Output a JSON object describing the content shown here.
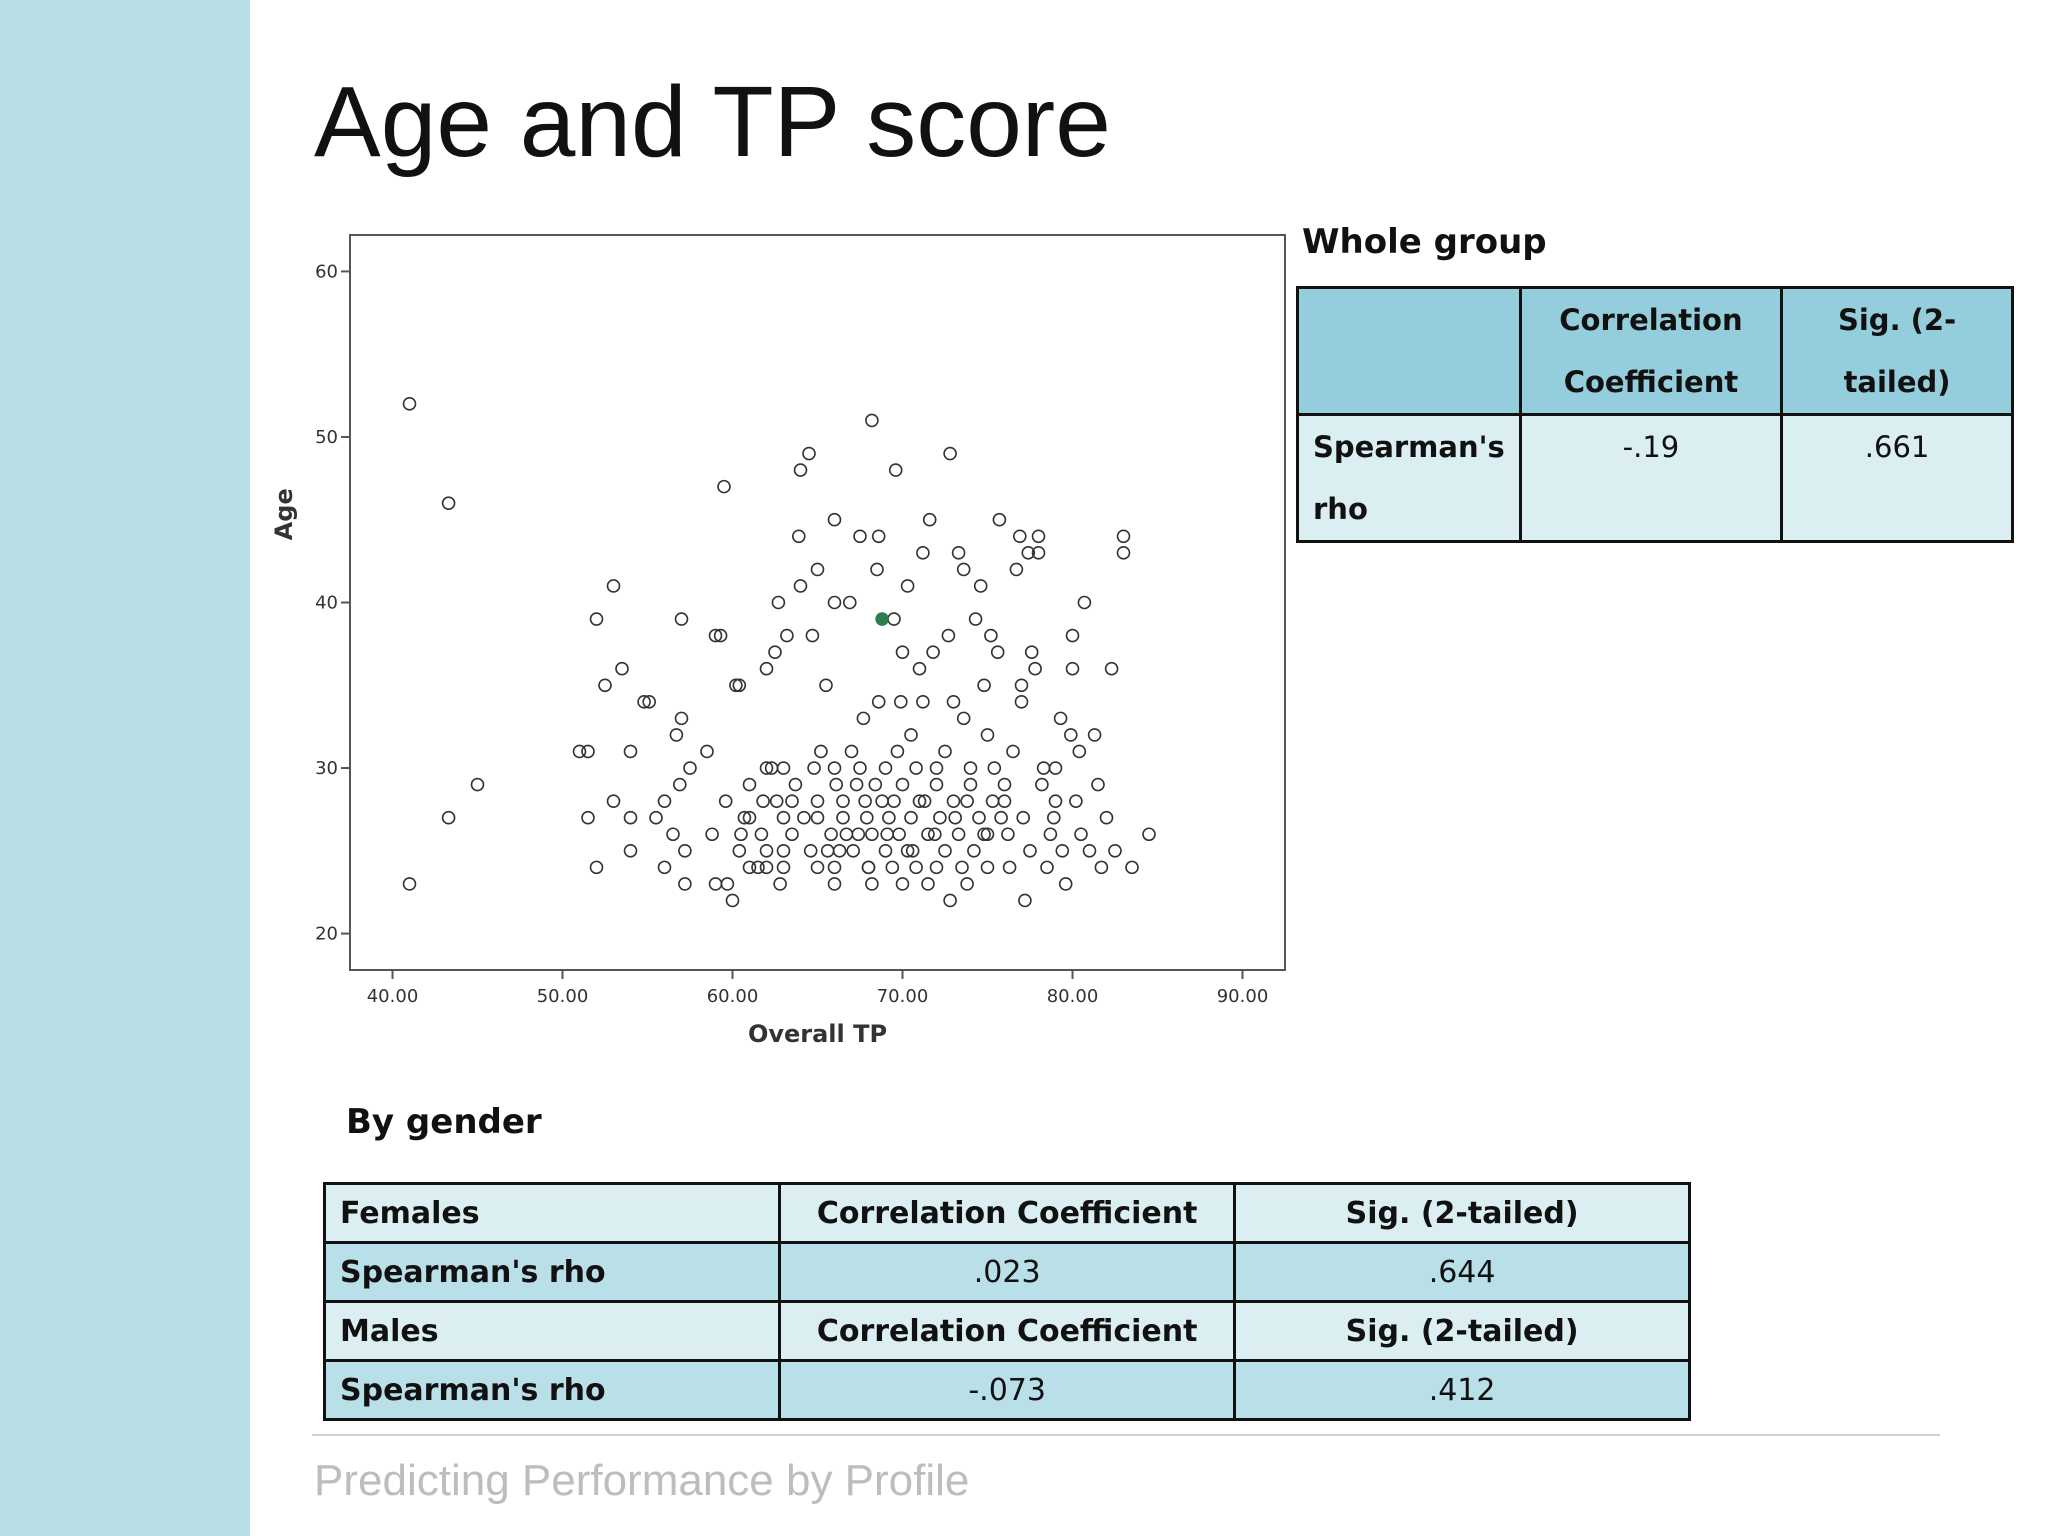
{
  "slide": {
    "title": "Age and TP score",
    "footer": "Predicting Performance by Profile",
    "sidebar_color": "#b7dee6"
  },
  "whole_group": {
    "label": "Whole group",
    "headers": [
      "",
      "Correlation Coefficient",
      "Sig. (2-tailed)"
    ],
    "row_label": "Spearman's rho",
    "correlation": "-.19",
    "sig": ".661",
    "header_color": "#94cddc",
    "row_color": "#dbeff3"
  },
  "by_gender": {
    "label": "By gender",
    "rows": [
      {
        "c1": "Females",
        "c2": "Correlation Coefficient",
        "c3": "Sig. (2-tailed)"
      },
      {
        "c1": "Spearman's rho",
        "c2": ".023",
        "c3": ".644"
      },
      {
        "c1": "Males",
        "c2": "Correlation Coefficient",
        "c3": "Sig. (2-tailed)"
      },
      {
        "c1": "Spearman's rho",
        "c2": "-.073",
        "c3": ".412"
      }
    ],
    "light_color": "#dbeff3",
    "dark_color": "#b9dfe8"
  },
  "chart_data": {
    "type": "scatter",
    "title": "",
    "xlabel": "Overall TP",
    "ylabel": "Age",
    "xlim": [
      37.5,
      92.5
    ],
    "ylim": [
      17.8,
      62.2
    ],
    "xticks": [
      40,
      50,
      60,
      70,
      80,
      90
    ],
    "xtick_labels": [
      "40.00",
      "50.00",
      "60.00",
      "70.00",
      "80.00",
      "90.00"
    ],
    "yticks": [
      20,
      30,
      40,
      50,
      60
    ],
    "ytick_labels": [
      "20",
      "30",
      "40",
      "50",
      "60"
    ],
    "grid": false,
    "legend": "none",
    "marker": "open circle",
    "highlight_color": "#2e7d4f",
    "series": [
      {
        "points": [
          [
            41,
            52
          ],
          [
            41,
            23
          ],
          [
            43.3,
            46
          ],
          [
            43.3,
            27
          ],
          [
            45,
            29
          ],
          [
            51,
            31
          ],
          [
            51.5,
            31
          ],
          [
            51.5,
            27
          ],
          [
            52,
            24
          ],
          [
            52,
            39
          ],
          [
            52.5,
            35
          ],
          [
            53,
            41
          ],
          [
            53,
            28
          ],
          [
            53.5,
            36
          ],
          [
            54,
            25
          ],
          [
            54,
            27
          ],
          [
            54,
            31
          ],
          [
            54.8,
            34
          ],
          [
            55.1,
            34
          ],
          [
            55.5,
            27
          ],
          [
            56,
            24
          ],
          [
            56,
            28
          ],
          [
            56.5,
            26
          ],
          [
            56.7,
            32
          ],
          [
            56.9,
            29
          ],
          [
            57,
            39
          ],
          [
            57,
            33
          ],
          [
            57.2,
            25
          ],
          [
            57.2,
            23
          ],
          [
            57.5,
            30
          ],
          [
            58.5,
            31
          ],
          [
            58.8,
            26
          ],
          [
            59,
            23
          ],
          [
            59,
            38
          ],
          [
            59.3,
            38
          ],
          [
            59.5,
            47
          ],
          [
            59.6,
            28
          ],
          [
            59.7,
            23
          ],
          [
            60,
            22
          ],
          [
            60.2,
            35
          ],
          [
            60.4,
            35
          ],
          [
            60.4,
            25
          ],
          [
            60.5,
            26
          ],
          [
            60.7,
            27
          ],
          [
            61,
            24
          ],
          [
            61,
            29
          ],
          [
            61,
            27
          ],
          [
            61.5,
            24
          ],
          [
            61.7,
            26
          ],
          [
            61.8,
            28
          ],
          [
            62,
            36
          ],
          [
            62,
            25
          ],
          [
            62,
            30
          ],
          [
            62,
            24
          ],
          [
            62.5,
            37
          ],
          [
            62.7,
            40
          ],
          [
            62.8,
            23
          ],
          [
            63,
            27
          ],
          [
            63,
            30
          ],
          [
            63,
            25
          ],
          [
            63,
            24
          ],
          [
            63.2,
            38
          ],
          [
            63.5,
            28
          ],
          [
            63.5,
            26
          ],
          [
            63.9,
            44
          ],
          [
            64,
            48
          ],
          [
            64,
            41
          ],
          [
            64.5,
            49
          ],
          [
            64.7,
            38
          ],
          [
            64.8,
            30
          ],
          [
            65,
            42
          ],
          [
            65,
            27
          ],
          [
            65,
            24
          ],
          [
            65,
            28
          ],
          [
            65.2,
            31
          ],
          [
            65.5,
            35
          ],
          [
            65.6,
            25
          ],
          [
            65.8,
            26
          ],
          [
            66,
            40
          ],
          [
            66,
            30
          ],
          [
            66,
            23
          ],
          [
            66,
            45
          ],
          [
            66,
            24
          ],
          [
            66.3,
            25
          ],
          [
            66.5,
            27
          ],
          [
            66.5,
            28
          ],
          [
            66.9,
            40
          ],
          [
            67,
            31
          ],
          [
            67.3,
            29
          ],
          [
            67.4,
            26
          ],
          [
            67.5,
            44
          ],
          [
            67.5,
            30
          ],
          [
            67.7,
            33
          ],
          [
            67.8,
            28
          ],
          [
            68,
            24
          ],
          [
            68,
            24
          ],
          [
            68.2,
            23
          ],
          [
            68.2,
            26
          ],
          [
            68.5,
            42
          ],
          [
            68.6,
            44
          ],
          [
            68.6,
            34
          ],
          [
            68.8,
            28
          ],
          [
            69,
            25
          ],
          [
            69,
            30
          ],
          [
            69.2,
            27
          ],
          [
            69.4,
            24
          ],
          [
            69.5,
            39
          ],
          [
            69.5,
            28
          ],
          [
            69.7,
            31
          ],
          [
            69.8,
            26
          ],
          [
            69.9,
            34
          ],
          [
            70,
            37
          ],
          [
            70,
            29
          ],
          [
            70,
            23
          ],
          [
            70.3,
            25
          ],
          [
            70.5,
            32
          ],
          [
            70.5,
            27
          ],
          [
            70.8,
            30
          ],
          [
            70.8,
            24
          ],
          [
            71,
            36
          ],
          [
            71,
            28
          ],
          [
            71.2,
            34
          ],
          [
            71.5,
            26
          ],
          [
            71.5,
            23
          ],
          [
            71.6,
            45
          ],
          [
            71.8,
            37
          ],
          [
            72,
            30
          ],
          [
            72,
            29
          ],
          [
            72,
            24
          ],
          [
            72.2,
            27
          ],
          [
            72.5,
            31
          ],
          [
            72.5,
            25
          ],
          [
            72.7,
            38
          ],
          [
            72.8,
            22
          ],
          [
            73,
            28
          ],
          [
            73,
            34
          ],
          [
            73.3,
            26
          ],
          [
            73.5,
            24
          ],
          [
            73.6,
            42
          ],
          [
            73.6,
            33
          ],
          [
            73.8,
            23
          ],
          [
            73.8,
            28
          ],
          [
            74,
            29
          ],
          [
            74,
            30
          ],
          [
            74.2,
            25
          ],
          [
            74.5,
            27
          ],
          [
            74.6,
            41
          ],
          [
            74.8,
            35
          ],
          [
            75,
            32
          ],
          [
            75,
            26
          ],
          [
            75,
            24
          ],
          [
            75.2,
            38
          ],
          [
            75.4,
            30
          ],
          [
            75.6,
            37
          ],
          [
            75.8,
            27
          ],
          [
            76,
            29
          ],
          [
            76,
            28
          ],
          [
            76.3,
            24
          ],
          [
            76.5,
            31
          ],
          [
            76.7,
            42
          ],
          [
            77,
            34
          ],
          [
            77,
            35
          ],
          [
            77.2,
            22
          ],
          [
            77.5,
            25
          ],
          [
            77.6,
            37
          ],
          [
            77.8,
            36
          ],
          [
            78,
            43
          ],
          [
            78,
            44
          ],
          [
            78.2,
            29
          ],
          [
            78.5,
            24
          ],
          [
            78.7,
            26
          ],
          [
            78.9,
            27
          ],
          [
            79,
            28
          ],
          [
            79,
            30
          ],
          [
            79.3,
            33
          ],
          [
            79.4,
            25
          ],
          [
            79.6,
            23
          ],
          [
            79.9,
            32
          ],
          [
            80,
            38
          ],
          [
            80,
            36
          ],
          [
            80.2,
            28
          ],
          [
            80.4,
            31
          ],
          [
            80.5,
            26
          ],
          [
            80.7,
            40
          ],
          [
            81,
            25
          ],
          [
            81.3,
            32
          ],
          [
            81.5,
            29
          ],
          [
            81.7,
            24
          ],
          [
            82,
            27
          ],
          [
            82.3,
            36
          ],
          [
            82.5,
            25
          ],
          [
            83,
            44
          ],
          [
            83,
            43
          ],
          [
            83.5,
            24
          ],
          [
            84.5,
            26
          ],
          [
            68.2,
            51
          ],
          [
            69.6,
            48
          ],
          [
            70.3,
            41
          ],
          [
            71.2,
            43
          ],
          [
            72.8,
            49
          ],
          [
            73.3,
            43
          ],
          [
            74.3,
            39
          ],
          [
            75.7,
            45
          ],
          [
            76.9,
            44
          ],
          [
            77.4,
            43
          ],
          [
            62.3,
            30
          ],
          [
            62.6,
            28
          ],
          [
            63.7,
            29
          ],
          [
            64.2,
            27
          ],
          [
            64.6,
            25
          ],
          [
            66.1,
            29
          ],
          [
            66.7,
            26
          ],
          [
            67.1,
            25
          ],
          [
            67.9,
            27
          ],
          [
            68.4,
            29
          ],
          [
            69.1,
            26
          ],
          [
            70.6,
            25
          ],
          [
            71.3,
            28
          ],
          [
            71.9,
            26
          ],
          [
            73.1,
            27
          ],
          [
            74.8,
            26
          ],
          [
            75.3,
            28
          ],
          [
            76.2,
            26
          ],
          [
            77.1,
            27
          ],
          [
            78.3,
            30
          ]
        ]
      }
    ],
    "highlight_point": [
      68.8,
      39
    ]
  }
}
